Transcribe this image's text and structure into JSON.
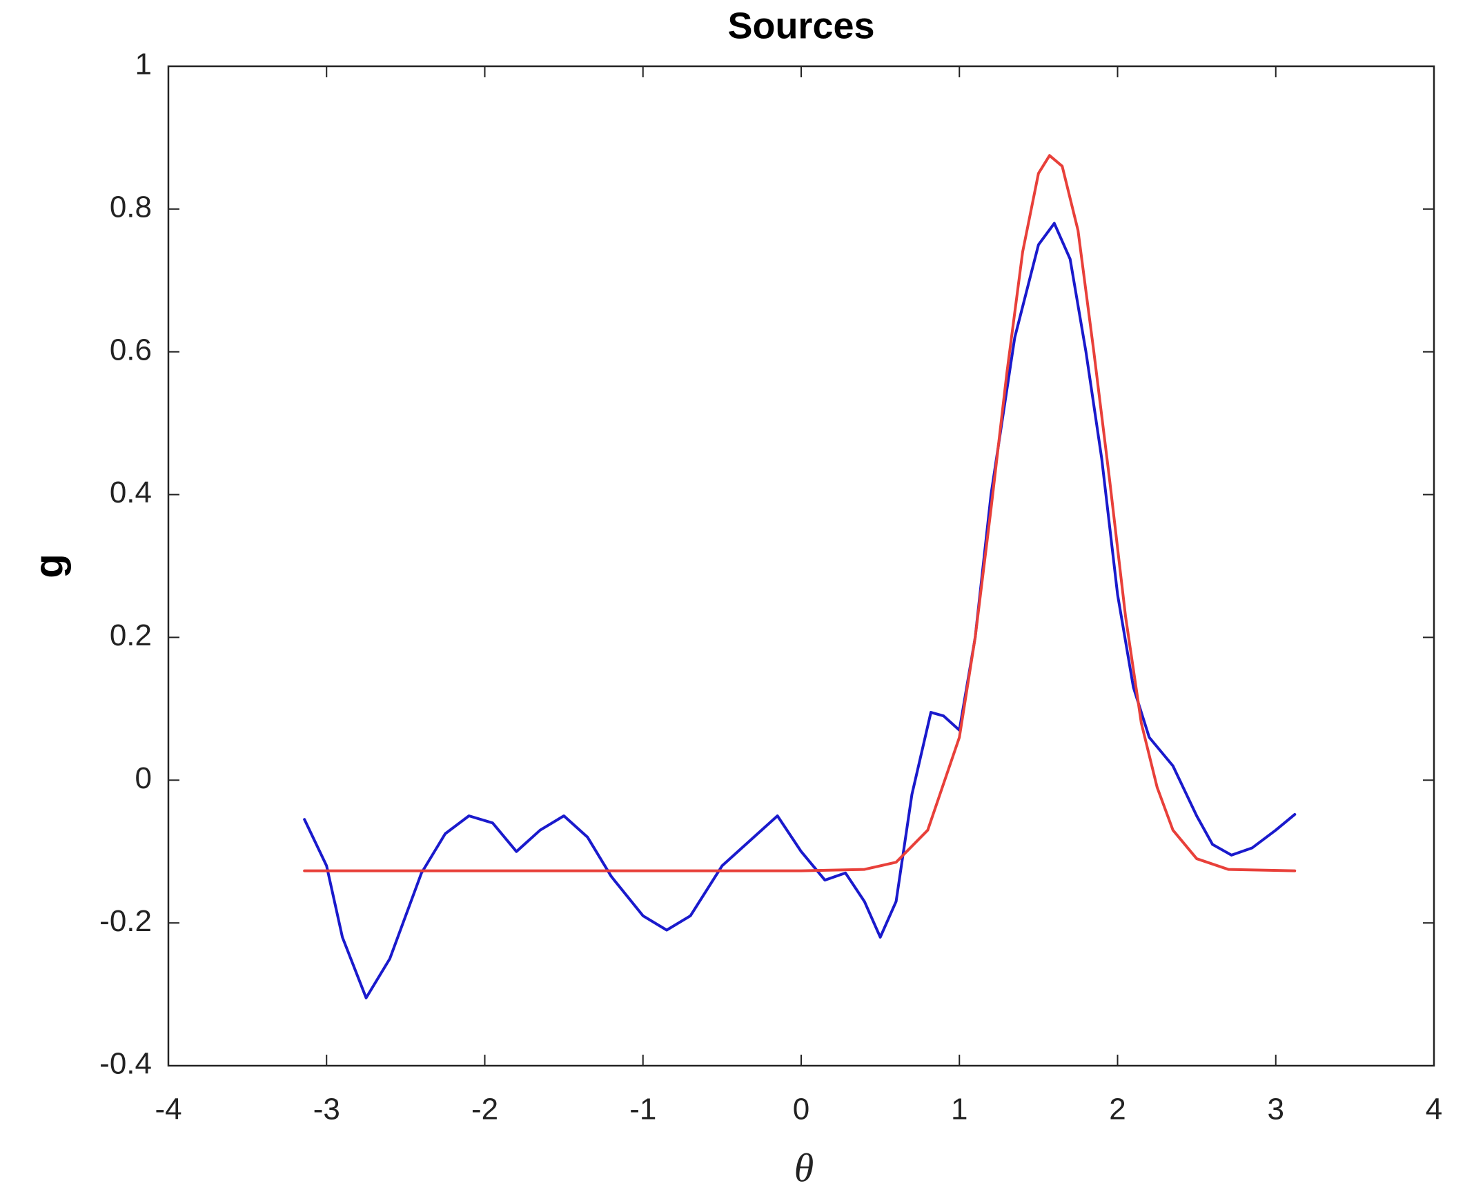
{
  "chart_data": {
    "type": "line",
    "title": "Sources",
    "x_label": "θ",
    "y_label": "g",
    "xlim": [
      -4,
      4
    ],
    "xticks": [
      -4,
      -3,
      -2,
      -1,
      0,
      1,
      2,
      3,
      4
    ],
    "ylim": [
      -0.4,
      1
    ],
    "yticks": [
      -0.4,
      -0.2,
      0,
      0.2,
      0.4,
      0.6,
      0.8,
      1
    ],
    "series": [
      {
        "color": "#1a1acc",
        "x": [
          -3.14,
          -3.0,
          -2.9,
          -2.75,
          -2.6,
          -2.4,
          -2.25,
          -2.1,
          -1.95,
          -1.8,
          -1.65,
          -1.5,
          -1.35,
          -1.2,
          -1.0,
          -0.85,
          -0.7,
          -0.5,
          -0.3,
          -0.15,
          0.0,
          0.15,
          0.28,
          0.4,
          0.5,
          0.6,
          0.7,
          0.82,
          0.9,
          1.0,
          1.1,
          1.2,
          1.35,
          1.5,
          1.6,
          1.7,
          1.8,
          1.9,
          2.0,
          2.1,
          2.2,
          2.35,
          2.5,
          2.6,
          2.72,
          2.85,
          3.0,
          3.12
        ],
        "values": [
          -0.055,
          -0.12,
          -0.22,
          -0.305,
          -0.25,
          -0.13,
          -0.075,
          -0.05,
          -0.06,
          -0.1,
          -0.07,
          -0.05,
          -0.08,
          -0.135,
          -0.19,
          -0.21,
          -0.19,
          -0.12,
          -0.08,
          -0.05,
          -0.1,
          -0.14,
          -0.13,
          -0.17,
          -0.22,
          -0.17,
          -0.02,
          0.095,
          0.09,
          0.07,
          0.2,
          0.4,
          0.62,
          0.75,
          0.78,
          0.73,
          0.6,
          0.45,
          0.26,
          0.13,
          0.06,
          0.02,
          -0.05,
          -0.09,
          -0.105,
          -0.095,
          -0.07,
          -0.048
        ]
      },
      {
        "color": "#e8403a",
        "x": [
          -3.14,
          0.0,
          0.4,
          0.6,
          0.8,
          1.0,
          1.1,
          1.2,
          1.3,
          1.4,
          1.5,
          1.57,
          1.65,
          1.75,
          1.85,
          1.95,
          2.05,
          2.15,
          2.25,
          2.35,
          2.5,
          2.7,
          3.12
        ],
        "values": [
          -0.127,
          -0.127,
          -0.125,
          -0.115,
          -0.07,
          0.06,
          0.2,
          0.38,
          0.57,
          0.74,
          0.85,
          0.875,
          0.86,
          0.77,
          0.6,
          0.42,
          0.23,
          0.08,
          -0.01,
          -0.07,
          -0.11,
          -0.125,
          -0.127
        ]
      }
    ]
  }
}
